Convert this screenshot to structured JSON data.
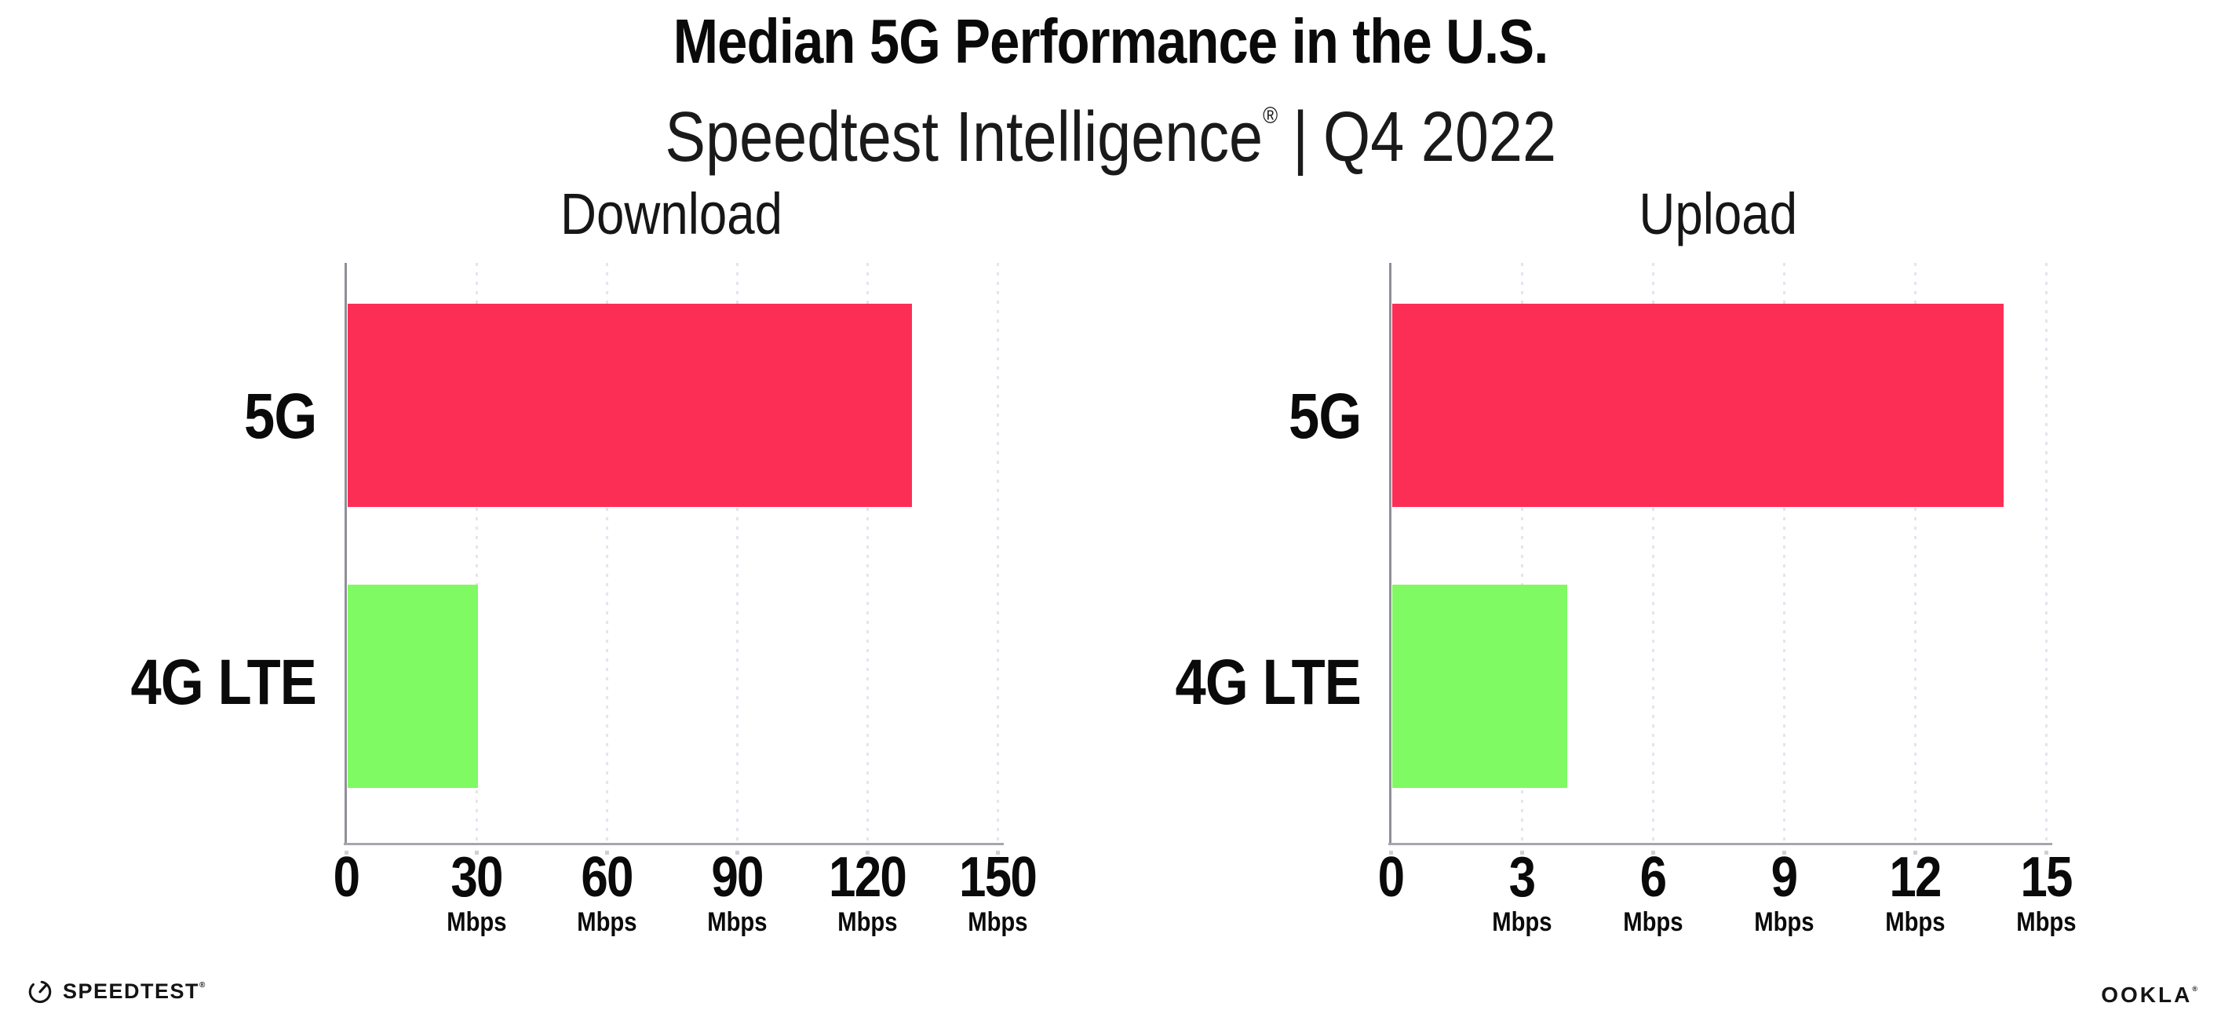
{
  "header": {
    "title": "Median 5G Performance in the U.S.",
    "subtitle_brand": "Speedtest Intelligence",
    "subtitle_reg": "®",
    "subtitle_separator": "|",
    "subtitle_period": "Q4 2022"
  },
  "chart_data": [
    {
      "type": "bar",
      "orientation": "horizontal",
      "title": "Download",
      "categories": [
        "5G",
        "4G LTE"
      ],
      "values": [
        130,
        30
      ],
      "unit": "Mbps",
      "xlim": [
        0,
        150
      ],
      "ticks": [
        0,
        30,
        60,
        90,
        120,
        150
      ],
      "bar_colors": [
        "#FD2E56",
        "#7FFA63"
      ],
      "grid": "dotted-vertical",
      "legend": "none"
    },
    {
      "type": "bar",
      "orientation": "horizontal",
      "title": "Upload",
      "categories": [
        "5G",
        "4G LTE"
      ],
      "values": [
        14,
        4
      ],
      "unit": "Mbps",
      "xlim": [
        0,
        15
      ],
      "ticks": [
        0,
        3,
        6,
        9,
        12,
        15
      ],
      "bar_colors": [
        "#FD2E56",
        "#7FFA63"
      ],
      "grid": "dotted-vertical",
      "legend": "none"
    }
  ],
  "footer": {
    "speedtest_label": "SPEEDTEST",
    "speedtest_mark": "®",
    "ookla_label": "OOKLA",
    "ookla_mark": "®"
  },
  "colors": {
    "bar_5g": "#FD2E56",
    "bar_4g_lte": "#7FFA63",
    "gridline": "#E5E4EF",
    "axis": "#A6A6AD",
    "text": "#0B0B0B"
  }
}
